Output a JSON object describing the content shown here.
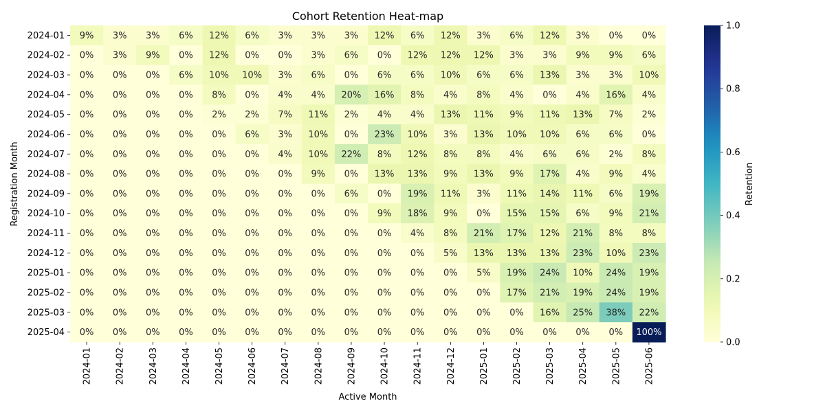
{
  "chart_data": {
    "type": "heatmap",
    "title": "Cohort Retention Heat-map",
    "xlabel": "Active Month",
    "ylabel": "Registration Month",
    "colorbar_label": "Retention",
    "colormap": "YlGnBu",
    "vmin": 0.0,
    "vmax": 1.0,
    "colorbar_ticks": [
      "0.0",
      "0.2",
      "0.4",
      "0.6",
      "0.8",
      "1.0"
    ],
    "x_categories": [
      "2024-01",
      "2024-02",
      "2024-03",
      "2024-04",
      "2024-05",
      "2024-06",
      "2024-07",
      "2024-08",
      "2024-09",
      "2024-10",
      "2024-11",
      "2024-12",
      "2025-01",
      "2025-02",
      "2025-03",
      "2025-04",
      "2025-05",
      "2025-06"
    ],
    "y_categories": [
      "2024-01",
      "2024-02",
      "2024-03",
      "2024-04",
      "2024-05",
      "2024-06",
      "2024-07",
      "2024-08",
      "2024-09",
      "2024-10",
      "2024-11",
      "2024-12",
      "2025-01",
      "2025-02",
      "2025-03",
      "2025-04"
    ],
    "values": [
      [
        9,
        3,
        3,
        6,
        12,
        6,
        3,
        3,
        3,
        12,
        6,
        12,
        3,
        6,
        12,
        3,
        0,
        0
      ],
      [
        0,
        3,
        9,
        0,
        12,
        0,
        0,
        3,
        6,
        0,
        12,
        12,
        12,
        3,
        3,
        9,
        9,
        6
      ],
      [
        0,
        0,
        0,
        6,
        10,
        10,
        3,
        6,
        0,
        6,
        6,
        10,
        6,
        6,
        13,
        3,
        3,
        10
      ],
      [
        0,
        0,
        0,
        0,
        8,
        0,
        4,
        4,
        20,
        16,
        8,
        4,
        8,
        4,
        0,
        4,
        16,
        4
      ],
      [
        0,
        0,
        0,
        0,
        2,
        2,
        7,
        11,
        2,
        4,
        4,
        13,
        11,
        9,
        11,
        13,
        7,
        2
      ],
      [
        0,
        0,
        0,
        0,
        0,
        6,
        3,
        10,
        0,
        23,
        10,
        3,
        13,
        10,
        10,
        6,
        6,
        0
      ],
      [
        0,
        0,
        0,
        0,
        0,
        0,
        4,
        10,
        22,
        8,
        12,
        8,
        8,
        4,
        6,
        6,
        2,
        8
      ],
      [
        0,
        0,
        0,
        0,
        0,
        0,
        0,
        9,
        0,
        13,
        13,
        9,
        13,
        9,
        17,
        4,
        9,
        4
      ],
      [
        0,
        0,
        0,
        0,
        0,
        0,
        0,
        0,
        6,
        0,
        19,
        11,
        3,
        11,
        14,
        11,
        6,
        19
      ],
      [
        0,
        0,
        0,
        0,
        0,
        0,
        0,
        0,
        0,
        9,
        18,
        9,
        0,
        15,
        15,
        6,
        9,
        21
      ],
      [
        0,
        0,
        0,
        0,
        0,
        0,
        0,
        0,
        0,
        0,
        4,
        8,
        21,
        17,
        12,
        21,
        8,
        8
      ],
      [
        0,
        0,
        0,
        0,
        0,
        0,
        0,
        0,
        0,
        0,
        0,
        5,
        13,
        13,
        13,
        23,
        10,
        23
      ],
      [
        0,
        0,
        0,
        0,
        0,
        0,
        0,
        0,
        0,
        0,
        0,
        0,
        5,
        19,
        24,
        10,
        24,
        19
      ],
      [
        0,
        0,
        0,
        0,
        0,
        0,
        0,
        0,
        0,
        0,
        0,
        0,
        0,
        17,
        21,
        19,
        24,
        19
      ],
      [
        0,
        0,
        0,
        0,
        0,
        0,
        0,
        0,
        0,
        0,
        0,
        0,
        0,
        0,
        16,
        25,
        38,
        22
      ],
      [
        0,
        0,
        0,
        0,
        0,
        0,
        0,
        0,
        0,
        0,
        0,
        0,
        0,
        0,
        0,
        0,
        0,
        100
      ]
    ],
    "value_unit": "%"
  }
}
